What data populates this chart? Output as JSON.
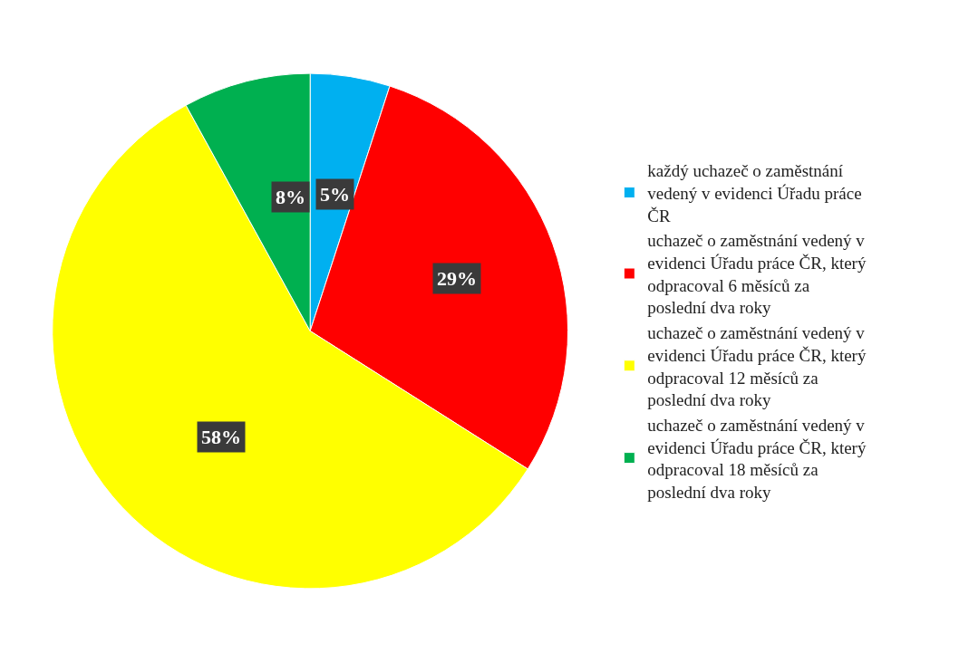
{
  "chart_data": {
    "type": "pie",
    "categories": [
      "každý uchazeč o zaměstnání vedený v evidenci Úřadu práce ČR",
      "uchazeč o zaměstnání vedený v evidenci Úřadu práce ČR, který odpracoval 6 měsíců za poslední dva roky",
      "uchazeč o zaměstnání vedený v evidenci Úřadu práce ČR, který odpracoval 12 měsíců za poslední dva roky",
      "uchazeč o zaměstnání vedený v evidenci Úřadu práce ČR, který odpracoval 18 měsíců za poslední dva roky"
    ],
    "values": [
      5,
      29,
      58,
      8
    ],
    "value_labels": [
      "5%",
      "29%",
      "58%",
      "8%"
    ],
    "colors": [
      "#00b0f0",
      "#ff0000",
      "#ffff00",
      "#00b050"
    ],
    "legend": "right"
  }
}
